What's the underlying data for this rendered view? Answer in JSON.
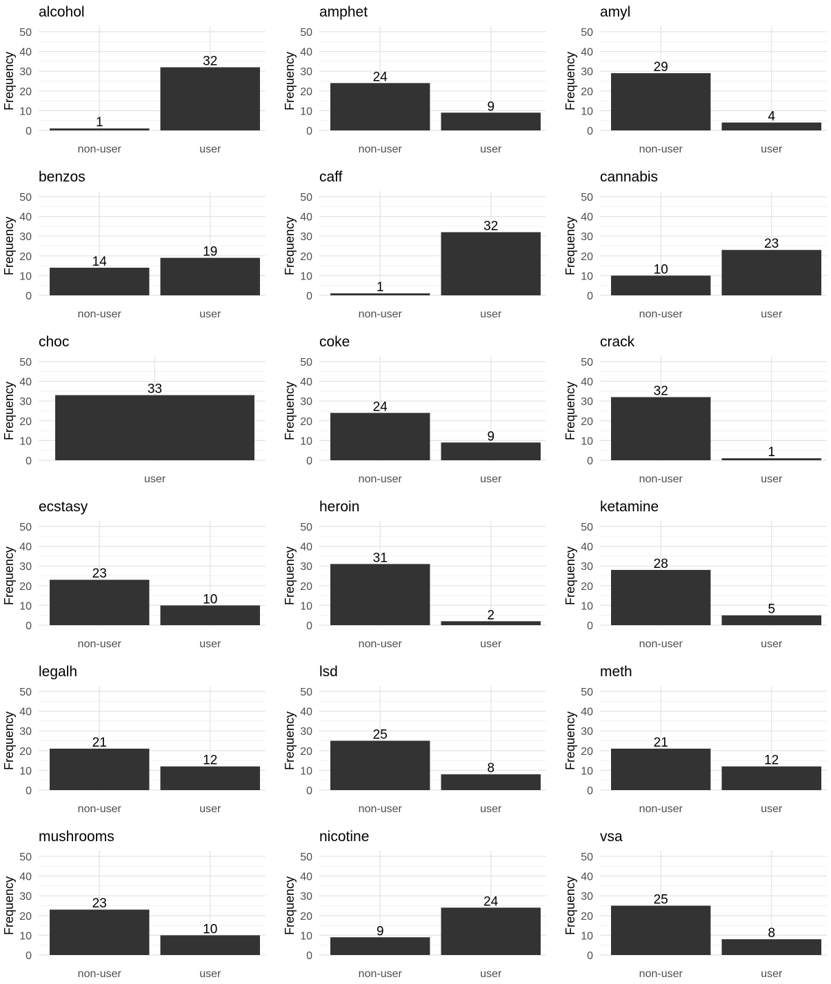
{
  "chart_data": [
    {
      "type": "bar",
      "title": "alcohol",
      "categories": [
        "non-user",
        "user"
      ],
      "values": [
        1,
        32
      ],
      "xlabel": "",
      "ylabel": "Frequency",
      "ylim": [
        0,
        50
      ],
      "yticks": [
        0,
        10,
        20,
        30,
        40,
        50
      ],
      "bar_color": "#333333"
    },
    {
      "type": "bar",
      "title": "amphet",
      "categories": [
        "non-user",
        "user"
      ],
      "values": [
        24,
        9
      ],
      "xlabel": "",
      "ylabel": "Frequency",
      "ylim": [
        0,
        50
      ],
      "yticks": [
        0,
        10,
        20,
        30,
        40,
        50
      ],
      "bar_color": "#333333"
    },
    {
      "type": "bar",
      "title": "amyl",
      "categories": [
        "non-user",
        "user"
      ],
      "values": [
        29,
        4
      ],
      "xlabel": "",
      "ylabel": "Frequency",
      "ylim": [
        0,
        50
      ],
      "yticks": [
        0,
        10,
        20,
        30,
        40,
        50
      ],
      "bar_color": "#333333"
    },
    {
      "type": "bar",
      "title": "benzos",
      "categories": [
        "non-user",
        "user"
      ],
      "values": [
        14,
        19
      ],
      "xlabel": "",
      "ylabel": "Frequency",
      "ylim": [
        0,
        50
      ],
      "yticks": [
        0,
        10,
        20,
        30,
        40,
        50
      ],
      "bar_color": "#333333"
    },
    {
      "type": "bar",
      "title": "caff",
      "categories": [
        "non-user",
        "user"
      ],
      "values": [
        1,
        32
      ],
      "xlabel": "",
      "ylabel": "Frequency",
      "ylim": [
        0,
        50
      ],
      "yticks": [
        0,
        10,
        20,
        30,
        40,
        50
      ],
      "bar_color": "#333333"
    },
    {
      "type": "bar",
      "title": "cannabis",
      "categories": [
        "non-user",
        "user"
      ],
      "values": [
        10,
        23
      ],
      "xlabel": "",
      "ylabel": "Frequency",
      "ylim": [
        0,
        50
      ],
      "yticks": [
        0,
        10,
        20,
        30,
        40,
        50
      ],
      "bar_color": "#333333"
    },
    {
      "type": "bar",
      "title": "choc",
      "categories": [
        "user"
      ],
      "values": [
        33
      ],
      "xlabel": "",
      "ylabel": "Frequency",
      "ylim": [
        0,
        50
      ],
      "yticks": [
        0,
        10,
        20,
        30,
        40,
        50
      ],
      "bar_color": "#333333"
    },
    {
      "type": "bar",
      "title": "coke",
      "categories": [
        "non-user",
        "user"
      ],
      "values": [
        24,
        9
      ],
      "xlabel": "",
      "ylabel": "Frequency",
      "ylim": [
        0,
        50
      ],
      "yticks": [
        0,
        10,
        20,
        30,
        40,
        50
      ],
      "bar_color": "#333333"
    },
    {
      "type": "bar",
      "title": "crack",
      "categories": [
        "non-user",
        "user"
      ],
      "values": [
        32,
        1
      ],
      "xlabel": "",
      "ylabel": "Frequency",
      "ylim": [
        0,
        50
      ],
      "yticks": [
        0,
        10,
        20,
        30,
        40,
        50
      ],
      "bar_color": "#333333"
    },
    {
      "type": "bar",
      "title": "ecstasy",
      "categories": [
        "non-user",
        "user"
      ],
      "values": [
        23,
        10
      ],
      "xlabel": "",
      "ylabel": "Frequency",
      "ylim": [
        0,
        50
      ],
      "yticks": [
        0,
        10,
        20,
        30,
        40,
        50
      ],
      "bar_color": "#333333"
    },
    {
      "type": "bar",
      "title": "heroin",
      "categories": [
        "non-user",
        "user"
      ],
      "values": [
        31,
        2
      ],
      "xlabel": "",
      "ylabel": "Frequency",
      "ylim": [
        0,
        50
      ],
      "yticks": [
        0,
        10,
        20,
        30,
        40,
        50
      ],
      "bar_color": "#333333"
    },
    {
      "type": "bar",
      "title": "ketamine",
      "categories": [
        "non-user",
        "user"
      ],
      "values": [
        28,
        5
      ],
      "xlabel": "",
      "ylabel": "Frequency",
      "ylim": [
        0,
        50
      ],
      "yticks": [
        0,
        10,
        20,
        30,
        40,
        50
      ],
      "bar_color": "#333333"
    },
    {
      "type": "bar",
      "title": "legalh",
      "categories": [
        "non-user",
        "user"
      ],
      "values": [
        21,
        12
      ],
      "xlabel": "",
      "ylabel": "Frequency",
      "ylim": [
        0,
        50
      ],
      "yticks": [
        0,
        10,
        20,
        30,
        40,
        50
      ],
      "bar_color": "#333333"
    },
    {
      "type": "bar",
      "title": "lsd",
      "categories": [
        "non-user",
        "user"
      ],
      "values": [
        25,
        8
      ],
      "xlabel": "",
      "ylabel": "Frequency",
      "ylim": [
        0,
        50
      ],
      "yticks": [
        0,
        10,
        20,
        30,
        40,
        50
      ],
      "bar_color": "#333333"
    },
    {
      "type": "bar",
      "title": "meth",
      "categories": [
        "non-user",
        "user"
      ],
      "values": [
        21,
        12
      ],
      "xlabel": "",
      "ylabel": "Frequency",
      "ylim": [
        0,
        50
      ],
      "yticks": [
        0,
        10,
        20,
        30,
        40,
        50
      ],
      "bar_color": "#333333"
    },
    {
      "type": "bar",
      "title": "mushrooms",
      "categories": [
        "non-user",
        "user"
      ],
      "values": [
        23,
        10
      ],
      "xlabel": "",
      "ylabel": "Frequency",
      "ylim": [
        0,
        50
      ],
      "yticks": [
        0,
        10,
        20,
        30,
        40,
        50
      ],
      "bar_color": "#333333"
    },
    {
      "type": "bar",
      "title": "nicotine",
      "categories": [
        "non-user",
        "user"
      ],
      "values": [
        9,
        24
      ],
      "xlabel": "",
      "ylabel": "Frequency",
      "ylim": [
        0,
        50
      ],
      "yticks": [
        0,
        10,
        20,
        30,
        40,
        50
      ],
      "bar_color": "#333333"
    },
    {
      "type": "bar",
      "title": "vsa",
      "categories": [
        "non-user",
        "user"
      ],
      "values": [
        25,
        8
      ],
      "xlabel": "",
      "ylabel": "Frequency",
      "ylim": [
        0,
        50
      ],
      "yticks": [
        0,
        10,
        20,
        30,
        40,
        50
      ],
      "bar_color": "#333333"
    }
  ],
  "style": {
    "grid_major": "#e2e2e2",
    "grid_minor": "#f1f1f1",
    "text_color": "#000000",
    "axis_text_color": "#4d4d4d"
  }
}
